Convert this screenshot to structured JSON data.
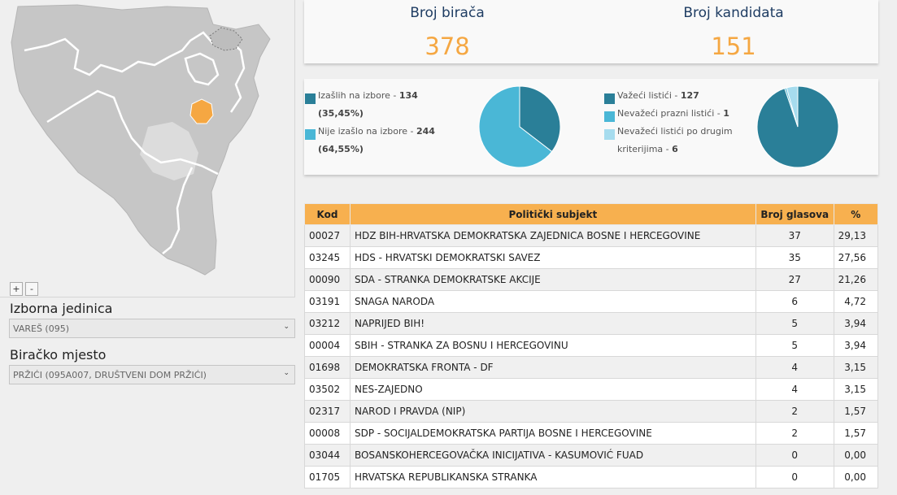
{
  "map": {
    "zoom_in": "+",
    "zoom_out": "-",
    "colors": {
      "land": "#c8c8c8",
      "border": "#ffffff",
      "highlight": "#f5a742",
      "faded": "#dedede"
    }
  },
  "filters": {
    "unit_label": "Izborna jedinica",
    "unit_value": "VAREŠ (095)",
    "place_label": "Biračko mjesto",
    "place_value": "PRŽIĆI (095A007, DRUŠTVENI DOM PRŽIĆI)"
  },
  "stats": {
    "voters_title": "Broj birača",
    "voters_value": "378",
    "candidates_title": "Broj kandidata",
    "candidates_value": "151"
  },
  "turnout": {
    "items": [
      {
        "label": "Izašlih na izbore - ",
        "value": "134",
        "pct": "(35,45%)",
        "color": "#2a7f98",
        "share": 0.3545
      },
      {
        "label": "Nije izašlo na izbore - ",
        "value": "244",
        "pct": "(64,55%)",
        "color": "#4ab7d6",
        "share": 0.6455
      }
    ]
  },
  "ballots": {
    "items": [
      {
        "label": "Važeći listići - ",
        "value": "127",
        "color": "#2a7f98",
        "share": 0.9478
      },
      {
        "label": "Nevažeći prazni listići - ",
        "value": "1",
        "color": "#4ab7d6",
        "share": 0.0075
      },
      {
        "label": "Nevažeći listići po drugim kriterijima - ",
        "value": "6",
        "color": "#a6dcee",
        "share": 0.0447
      }
    ]
  },
  "table": {
    "headers": [
      "Kod",
      "Politički subjekt",
      "Broj glasova",
      "%"
    ],
    "header_color": "#f7b04f",
    "rows": [
      [
        "00027",
        "HDZ BIH-HRVATSKA DEMOKRATSKA ZAJEDNICA BOSNE I HERCEGOVINE",
        "37",
        "29,13"
      ],
      [
        "03245",
        "HDS - HRVATSKI DEMOKRATSKI SAVEZ",
        "35",
        "27,56"
      ],
      [
        "00090",
        "SDA - STRANKA DEMOKRATSKE AKCIJE",
        "27",
        "21,26"
      ],
      [
        "03191",
        "SNAGA NARODA",
        "6",
        "4,72"
      ],
      [
        "03212",
        "NAPRIJED BIH!",
        "5",
        "3,94"
      ],
      [
        "00004",
        "SBIH - STRANKA ZA BOSNU I HERCEGOVINU",
        "5",
        "3,94"
      ],
      [
        "01698",
        "DEMOKRATSKA FRONTA - DF",
        "4",
        "3,15"
      ],
      [
        "03502",
        "NES-ZAJEDNO",
        "4",
        "3,15"
      ],
      [
        "02317",
        "NAROD I PRAVDA (NIP)",
        "2",
        "1,57"
      ],
      [
        "00008",
        "SDP - SOCIJALDEMOKRATSKA PARTIJA BOSNE I HERCEGOVINE",
        "2",
        "1,57"
      ],
      [
        "03044",
        "BOSANSKOHERCEGOVAČKA INICIJATIVA - KASUMOVIĆ FUAD",
        "0",
        "0,00"
      ],
      [
        "01705",
        "HRVATSKA REPUBLIKANSKA STRANKA",
        "0",
        "0,00"
      ]
    ]
  }
}
